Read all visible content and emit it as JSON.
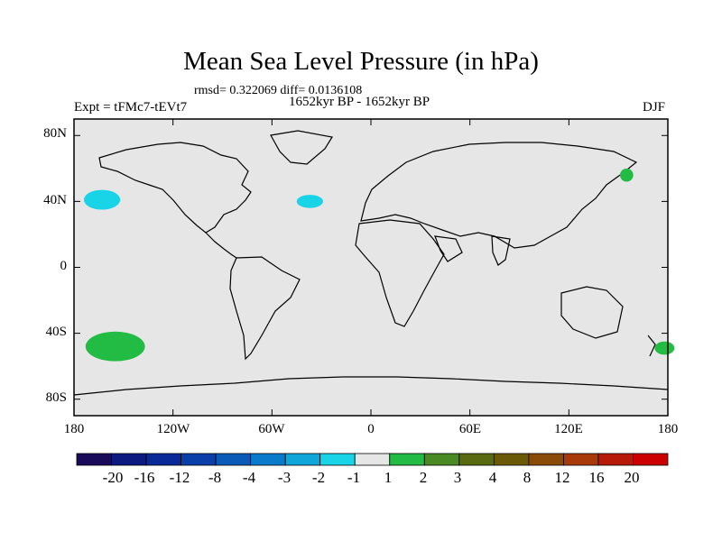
{
  "title": "Mean Sea Level Pressure (in hPa)",
  "stats": "rmsd= 0.322069 diff= 0.0136108",
  "period": "1652kyr BP - 1652kyr BP",
  "experiment": "Expt = tFMc7-tEVt7",
  "season": "DJF",
  "lat_ticks": [
    "80N",
    "40N",
    "0",
    "40S",
    "80S"
  ],
  "lon_ticks": [
    "180",
    "120W",
    "60W",
    "0",
    "60E",
    "120E",
    "180"
  ],
  "colorbar": {
    "labels": [
      "-20",
      "-16",
      "-12",
      "-8",
      "-4",
      "-3",
      "-2",
      "-1",
      "1",
      "2",
      "3",
      "4",
      "8",
      "12",
      "16",
      "20"
    ],
    "colors": [
      "#1a0a5a",
      "#0d1a80",
      "#0a2a9a",
      "#0a3ea8",
      "#0a5ab8",
      "#0a7acb",
      "#10a6da",
      "#18d4e6",
      "#e6e6e6",
      "#22bb44",
      "#4a8a22",
      "#5a6a10",
      "#6a5a08",
      "#8a4a08",
      "#a83a0a",
      "#b81a0a",
      "#cc0000"
    ]
  },
  "anomalies": [
    {
      "name": "north-pacific-negative",
      "level": "-2 to -1",
      "color": "#18d4e6",
      "lon": -163,
      "lat": 41,
      "rlon": 11,
      "rlat": 6
    },
    {
      "name": "north-atlantic-negative",
      "level": "-2 to -1",
      "color": "#18d4e6",
      "lon": -37,
      "lat": 40,
      "rlon": 8,
      "rlat": 4
    },
    {
      "name": "kamchatka-positive",
      "level": "1 to 2",
      "color": "#22bb44",
      "lon": 155,
      "lat": 56,
      "rlon": 4,
      "rlat": 4
    },
    {
      "name": "south-pacific-positive",
      "level": "1 to 2",
      "color": "#22bb44",
      "lon": -155,
      "lat": -48,
      "rlon": 18,
      "rlat": 9
    },
    {
      "name": "south-east-edge-positive",
      "level": "1 to 2",
      "color": "#22bb44",
      "lon": 178,
      "lat": -49,
      "rlon": 6,
      "rlat": 4
    }
  ]
}
